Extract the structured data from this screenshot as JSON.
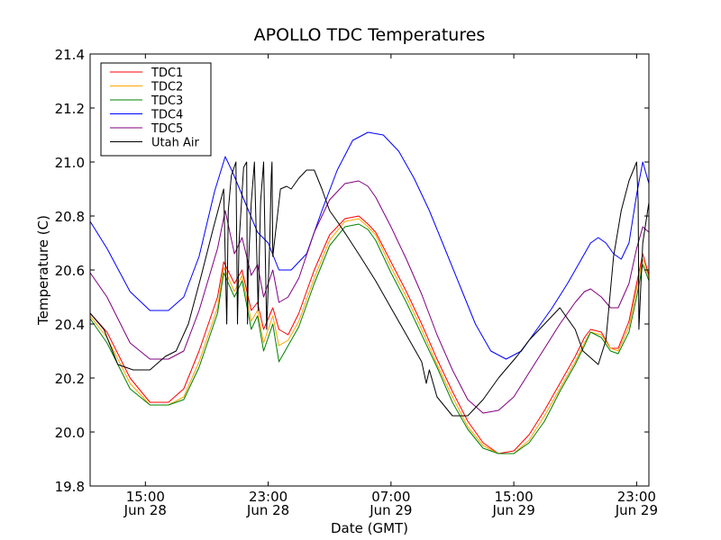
{
  "chart_data": {
    "type": "line",
    "title": "APOLLO TDC Temperatures",
    "xlabel": "Date (GMT)",
    "ylabel": "Temperature (C)",
    "xlim": [
      11.4,
      47.8
    ],
    "ylim": [
      19.8,
      21.4
    ],
    "grid": false,
    "legend": "top-left",
    "yticks": [
      19.8,
      20.0,
      20.2,
      20.4,
      20.6,
      20.8,
      21.0,
      21.2,
      21.4
    ],
    "ytick_labels": [
      "19.8",
      "20.0",
      "20.2",
      "20.4",
      "20.6",
      "20.8",
      "21.0",
      "21.2",
      "21.4"
    ],
    "xticks": [
      {
        "value": 15,
        "time": "15:00",
        "date": "Jun 28"
      },
      {
        "value": 23,
        "time": "23:00",
        "date": "Jun 28"
      },
      {
        "value": 31,
        "time": "07:00",
        "date": "Jun 29"
      },
      {
        "value": 39,
        "time": "15:00",
        "date": "Jun 29"
      },
      {
        "value": 47,
        "time": "23:00",
        "date": "Jun 29"
      }
    ],
    "x_unit": "hours since Jun 28 00:00 GMT",
    "series": [
      {
        "name": "TDC1",
        "color": "#ff0000",
        "x": [
          11.4,
          12.5,
          14,
          15.3,
          16.5,
          17.5,
          18.5,
          19.7,
          20.1,
          20.8,
          21.3,
          21.9,
          22.3,
          22.7,
          23.3,
          23.7,
          24.3,
          25,
          26,
          27,
          28,
          28.9,
          29.5,
          30,
          31,
          32,
          33,
          34,
          35,
          36,
          37,
          38,
          39,
          40,
          41,
          42,
          43,
          43.6,
          44,
          44.7,
          45.3,
          45.8,
          46.5,
          47,
          47.4,
          47.8
        ],
        "y": [
          20.44,
          20.37,
          20.2,
          20.11,
          20.11,
          20.16,
          20.3,
          20.5,
          20.63,
          20.55,
          20.6,
          20.45,
          20.48,
          20.38,
          20.46,
          20.38,
          20.36,
          20.44,
          20.6,
          20.73,
          20.79,
          20.8,
          20.77,
          20.74,
          20.63,
          20.52,
          20.4,
          20.27,
          20.15,
          20.04,
          19.96,
          19.92,
          19.93,
          19.99,
          20.08,
          20.18,
          20.28,
          20.35,
          20.38,
          20.37,
          20.31,
          20.31,
          20.41,
          20.55,
          20.66,
          20.58
        ]
      },
      {
        "name": "TDC2",
        "color": "#ffa500",
        "x": [
          11.4,
          12.5,
          14,
          15.3,
          16.5,
          17.5,
          18.5,
          19.7,
          20.1,
          20.8,
          21.3,
          21.9,
          22.3,
          22.7,
          23.3,
          23.7,
          24.3,
          25,
          26,
          27,
          28,
          28.9,
          29.5,
          30,
          31,
          32,
          33,
          34,
          35,
          36,
          37,
          38,
          39,
          40,
          41,
          42,
          43,
          43.6,
          44,
          44.7,
          45.3,
          45.8,
          46.5,
          47,
          47.4,
          47.8
        ],
        "y": [
          20.43,
          20.35,
          20.18,
          20.1,
          20.1,
          20.13,
          20.26,
          20.46,
          20.61,
          20.52,
          20.58,
          20.41,
          20.45,
          20.33,
          20.43,
          20.32,
          20.34,
          20.41,
          20.57,
          20.71,
          20.78,
          20.79,
          20.76,
          20.73,
          20.61,
          20.5,
          20.38,
          20.25,
          20.13,
          20.02,
          19.95,
          19.92,
          19.92,
          19.97,
          20.06,
          20.16,
          20.26,
          20.33,
          20.37,
          20.36,
          20.31,
          20.3,
          20.39,
          20.53,
          20.64,
          20.57
        ]
      },
      {
        "name": "TDC3",
        "color": "#008000",
        "x": [
          11.4,
          12.5,
          14,
          15.3,
          16.5,
          17.5,
          18.5,
          19.7,
          20.1,
          20.8,
          21.3,
          21.9,
          22.3,
          22.7,
          23.3,
          23.7,
          24.3,
          25,
          26,
          27,
          28,
          28.9,
          29.5,
          30,
          31,
          32,
          33,
          34,
          35,
          36,
          37,
          38,
          39,
          40,
          41,
          42,
          43,
          43.6,
          44,
          44.7,
          45.3,
          45.8,
          46.5,
          47,
          47.4,
          47.8
        ],
        "y": [
          20.42,
          20.33,
          20.16,
          20.1,
          20.1,
          20.12,
          20.24,
          20.44,
          20.59,
          20.5,
          20.56,
          20.38,
          20.43,
          20.3,
          20.4,
          20.26,
          20.32,
          20.39,
          20.55,
          20.69,
          20.76,
          20.77,
          20.75,
          20.71,
          20.59,
          20.48,
          20.36,
          20.24,
          20.11,
          20.01,
          19.94,
          19.92,
          19.92,
          19.96,
          20.04,
          20.15,
          20.25,
          20.32,
          20.37,
          20.35,
          20.3,
          20.29,
          20.37,
          20.5,
          20.62,
          20.56
        ]
      },
      {
        "name": "TDC4",
        "color": "#0000ff",
        "x": [
          11.4,
          12.5,
          14,
          15.3,
          16.5,
          17.5,
          18.5,
          19.5,
          20.2,
          20.7,
          21.5,
          22.3,
          23,
          23.7,
          24.5,
          25.5,
          26.5,
          27.5,
          28.5,
          29.5,
          30.5,
          31.5,
          32.5,
          33.5,
          34.5,
          35.5,
          36.5,
          37.5,
          38.5,
          39.5,
          40.5,
          41.5,
          42.5,
          43.5,
          44,
          44.5,
          45,
          45.5,
          46,
          46.5,
          47,
          47.4,
          47.8
        ],
        "y": [
          20.78,
          20.68,
          20.52,
          20.45,
          20.45,
          20.5,
          20.65,
          20.89,
          21.02,
          20.96,
          20.85,
          20.74,
          20.7,
          20.6,
          20.6,
          20.66,
          20.82,
          20.97,
          21.08,
          21.11,
          21.1,
          21.04,
          20.94,
          20.82,
          20.68,
          20.54,
          20.4,
          20.3,
          20.27,
          20.3,
          20.38,
          20.46,
          20.55,
          20.65,
          20.7,
          20.72,
          20.7,
          20.66,
          20.64,
          20.7,
          20.88,
          21.0,
          20.92
        ]
      },
      {
        "name": "TDC5",
        "color": "#800080",
        "x": [
          11.4,
          12.5,
          14,
          15.3,
          16.5,
          17.5,
          18.5,
          19.7,
          20.2,
          20.8,
          21.3,
          21.9,
          22.3,
          22.7,
          23.3,
          23.7,
          24.3,
          25,
          26,
          27,
          28,
          28.9,
          29.5,
          30,
          31,
          32,
          33,
          34,
          35,
          36,
          37,
          38,
          39,
          40,
          41,
          42,
          43,
          43.6,
          44,
          44.7,
          45.3,
          45.8,
          46.5,
          47,
          47.4,
          47.8
        ],
        "y": [
          20.59,
          20.5,
          20.33,
          20.27,
          20.27,
          20.3,
          20.45,
          20.68,
          20.82,
          20.66,
          20.72,
          20.58,
          20.62,
          20.5,
          20.6,
          20.48,
          20.5,
          20.57,
          20.74,
          20.86,
          20.92,
          20.93,
          20.91,
          20.87,
          20.76,
          20.64,
          20.51,
          20.36,
          20.23,
          20.12,
          20.07,
          20.08,
          20.13,
          20.22,
          20.31,
          20.4,
          20.48,
          20.52,
          20.53,
          20.5,
          20.46,
          20.46,
          20.55,
          20.68,
          20.76,
          20.74
        ]
      },
      {
        "name": "Utah Air",
        "color": "#000000",
        "x": [
          11.4,
          12.3,
          13.2,
          14.2,
          15.3,
          16.3,
          17,
          17.8,
          18.6,
          19.4,
          20.1,
          20.3,
          20.4,
          20.6,
          20.9,
          21.0,
          21.1,
          21.4,
          21.6,
          21.65,
          21.7,
          21.9,
          22.1,
          22.35,
          22.4,
          22.5,
          22.7,
          22.9,
          23.1,
          23.2,
          23.25,
          23.3,
          23.8,
          24.2,
          24.5,
          25,
          25.5,
          26,
          26.5,
          27,
          27.5,
          28.2,
          29,
          30,
          31,
          32,
          33,
          33.3,
          33.5,
          34,
          35,
          36,
          37,
          38,
          38.6,
          39.2,
          40,
          41,
          42,
          43,
          43.5,
          44.5,
          45,
          45.5,
          46,
          46.5,
          47,
          47.1,
          47.15,
          47.4,
          47.8
        ],
        "y": [
          20.44,
          20.38,
          20.25,
          20.23,
          20.23,
          20.28,
          20.3,
          20.4,
          20.57,
          20.75,
          20.9,
          20.4,
          20.82,
          20.95,
          21.0,
          20.4,
          20.7,
          20.98,
          21.0,
          20.4,
          20.6,
          20.85,
          21.0,
          20.45,
          20.6,
          20.85,
          21.0,
          20.38,
          20.7,
          20.95,
          21.0,
          20.65,
          20.9,
          20.91,
          20.9,
          20.94,
          20.97,
          20.97,
          20.9,
          20.82,
          20.78,
          20.72,
          20.65,
          20.56,
          20.46,
          20.36,
          20.26,
          20.18,
          20.23,
          20.13,
          20.06,
          20.06,
          20.12,
          20.2,
          20.24,
          20.28,
          20.34,
          20.4,
          20.46,
          20.38,
          20.3,
          20.25,
          20.34,
          20.65,
          20.82,
          20.93,
          21.0,
          20.85,
          20.38,
          20.7,
          20.85
        ]
      }
    ]
  }
}
